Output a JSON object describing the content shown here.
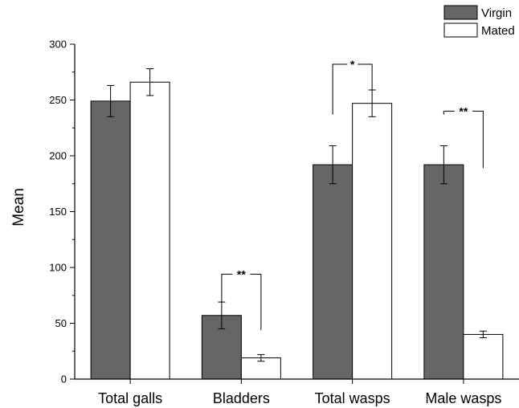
{
  "chart_data": {
    "type": "bar",
    "title": "",
    "xlabel": "",
    "ylabel": "Mean",
    "ylim": [
      0,
      300
    ],
    "yticks": [
      0,
      50,
      100,
      150,
      200,
      250,
      300
    ],
    "categories": [
      "Total galls",
      "Bladders",
      "Total wasps",
      "Male wasps"
    ],
    "series": [
      {
        "name": "Virgin",
        "color": "#666666",
        "values": [
          249,
          57,
          192,
          192
        ],
        "errors": [
          14,
          12,
          17,
          17
        ]
      },
      {
        "name": "Mated",
        "color": "#ffffff",
        "values": [
          266,
          19,
          247,
          40
        ],
        "errors": [
          12,
          3,
          12,
          3
        ]
      }
    ],
    "significance": [
      {
        "category": "Bladders",
        "label": "**",
        "virgin_top": 69,
        "mated_top": 44,
        "bracket_y": 94
      },
      {
        "category": "Total wasps",
        "label": "*",
        "virgin_top": 237,
        "mated_top": 259,
        "bracket_y": 282
      },
      {
        "category": "Male wasps",
        "label": "**",
        "virgin_top": 237,
        "mated_top": 189,
        "bracket_y": 240
      }
    ],
    "legend": {
      "position": "top-right"
    },
    "grid": false
  }
}
